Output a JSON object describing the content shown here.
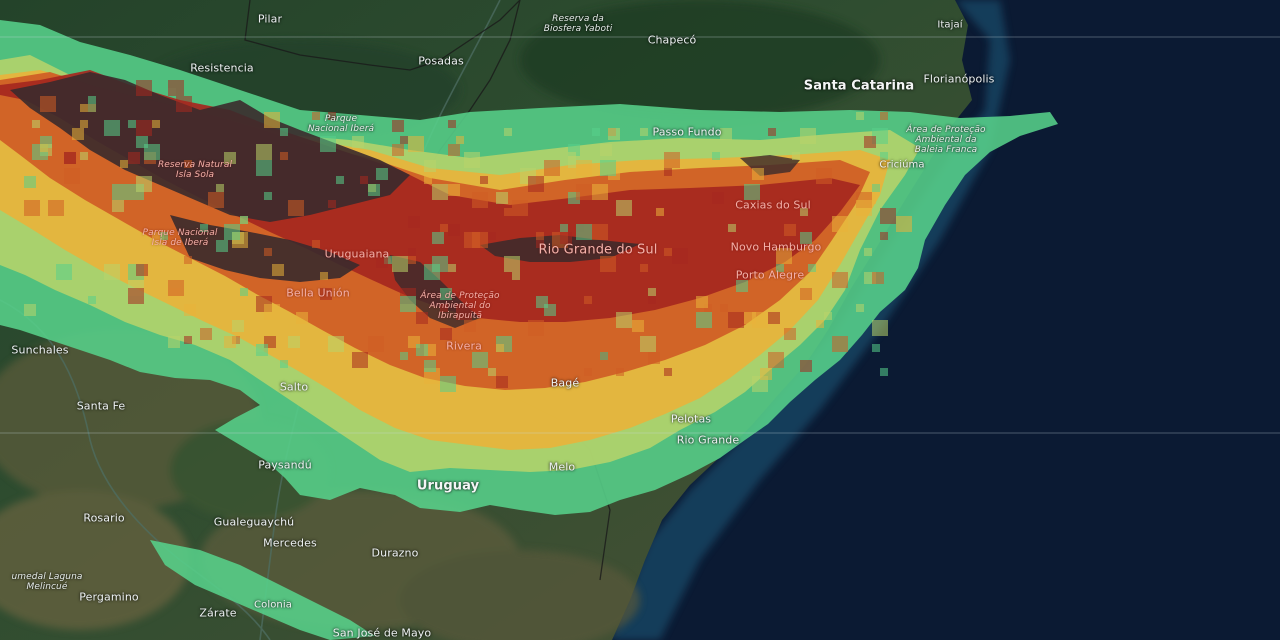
{
  "map": {
    "colors": {
      "ocean": "#0b1a33",
      "land_dark": "#1f3a25",
      "land_mid": "#37563a",
      "land_brown": "#5a5a3c",
      "rain_light": "#57d08a",
      "rain_lowmid": "#b9d46a",
      "rain_mid": "#e9b23a",
      "rain_high": "#cf5d25",
      "rain_veryhigh": "#a6281f",
      "rain_extreme": "#3a2a2c"
    }
  },
  "labels": {
    "pilar": "Pilar",
    "reserva_biosfera": "Reserva da\nBiosfera Yaboti",
    "chapeco": "Chapecó",
    "itajai": "Itajaí",
    "resistencia": "Resistencia",
    "posadas": "Posadas",
    "santa_catarina": "Santa Catarina",
    "florianopolis": "Florianópolis",
    "parque_ibera": "Parque\nNacional Iberá",
    "passo_fundo": "Passo Fundo",
    "area_protecao": "Área de Proteção\nAmbiental da\nBaleia Franca",
    "criciuma": "Criciúma",
    "reserva_isla": "Reserva Natural\nIsla Sola",
    "caxias_do_sul": "Caxias do Sul",
    "parque_nat_sola": "Parque Nacional\nIsla de Iberá",
    "uruguaiana": "Uruguaiana",
    "rio_grande_do_sul": "Rio Grande do Sul",
    "novo_hamburgo": "Novo Hamburgo",
    "porto_alegre": "Porto Alegre",
    "bella_union": "Bella Unión",
    "area_ibirapuita": "Área de Proteção\nAmbiental do\nIbirapuitã",
    "rivera": "Rivera",
    "sunchales": "Sunchales",
    "salto": "Salto",
    "bage": "Bagé",
    "santa_fe": "Santa Fe",
    "pelotas": "Pelotas",
    "rio_grande": "Rio Grande",
    "paysandu": "Paysandú",
    "uruguay": "Uruguay",
    "melo": "Melo",
    "rosario": "Rosario",
    "gualeguaychu": "Gualeguaychú",
    "mercedes": "Mercedes",
    "durazno": "Durazno",
    "humedal_laguna": "umedal Laguna\nMelincué",
    "pergamino": "Pergamino",
    "zarate": "Zárate",
    "colonia": "Colonia",
    "san_jose": "San José de Mayo"
  }
}
